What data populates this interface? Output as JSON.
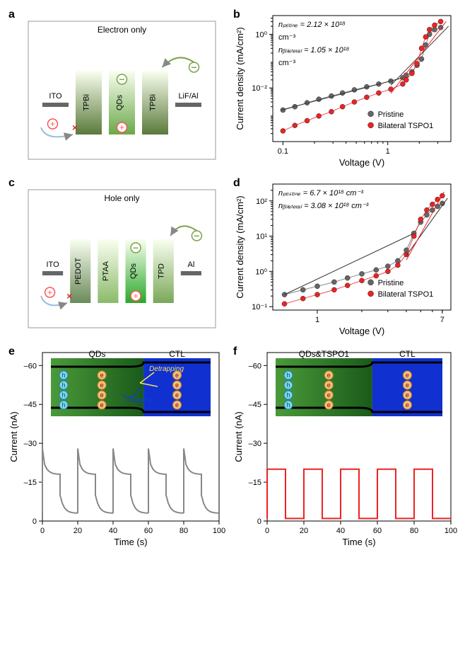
{
  "panels": {
    "a": {
      "label": "a",
      "title": "Electron only",
      "blocks": [
        "ITO",
        "TPBi",
        "QDs",
        "TPBi",
        "LiF/Al"
      ],
      "block_colors": [
        "#666666",
        "#5a7a3a",
        "#6aa84a",
        "#5a7a3a",
        "#666666"
      ],
      "arrow_positive_color": "#ff5555",
      "arrow_negative_color": "#7aa34a",
      "arrow_cross_color": "#9BBEDD",
      "cross_symbol": "×"
    },
    "b": {
      "label": "b",
      "xlabel": "Voltage (V)",
      "ylabel": "Current density (mA/cm²)",
      "xlim": [
        0.08,
        4
      ],
      "ylim": [
        0.0001,
        5
      ],
      "x_ticks": [
        0.1,
        1
      ],
      "y_ticks": [
        0.01,
        1
      ],
      "y_tick_labels": [
        "10⁻²",
        "10⁰"
      ],
      "series": [
        {
          "name": "Pristine",
          "color": "#666666",
          "marker": "circle",
          "data": [
            [
              0.1,
              0.0015
            ],
            [
              0.13,
              0.002
            ],
            [
              0.17,
              0.0028
            ],
            [
              0.22,
              0.0038
            ],
            [
              0.29,
              0.005
            ],
            [
              0.37,
              0.0065
            ],
            [
              0.48,
              0.0085
            ],
            [
              0.63,
              0.011
            ],
            [
              0.82,
              0.014
            ],
            [
              1.07,
              0.018
            ],
            [
              1.39,
              0.024
            ],
            [
              1.5,
              0.03
            ],
            [
              1.7,
              0.04
            ],
            [
              1.9,
              0.07
            ],
            [
              2.1,
              0.12
            ],
            [
              2.3,
              0.4
            ],
            [
              2.5,
              1.0
            ],
            [
              2.8,
              1.5
            ],
            [
              3.2,
              1.8
            ]
          ]
        },
        {
          "name": "Bilateral TSPO1",
          "color": "#ee2222",
          "marker": "circle",
          "data": [
            [
              0.1,
              0.00025
            ],
            [
              0.13,
              0.0004
            ],
            [
              0.17,
              0.0006
            ],
            [
              0.22,
              0.0009
            ],
            [
              0.29,
              0.0013
            ],
            [
              0.37,
              0.002
            ],
            [
              0.48,
              0.003
            ],
            [
              0.63,
              0.0045
            ],
            [
              0.82,
              0.0065
            ],
            [
              1.07,
              0.009
            ],
            [
              1.39,
              0.014
            ],
            [
              1.5,
              0.02
            ],
            [
              1.7,
              0.035
            ],
            [
              1.9,
              0.08
            ],
            [
              2.1,
              0.3
            ],
            [
              2.3,
              0.8
            ],
            [
              2.5,
              1.5
            ],
            [
              2.8,
              2.2
            ],
            [
              3.2,
              3.0
            ]
          ]
        }
      ],
      "annot1": "nₚᵣᵢₜᵢₙₑ = 2.12 × 10¹⁸",
      "annot1b": "cm⁻³",
      "annot2": "nᵦᵢₗₐₜₑᵣₐₗ = 1.05 × 10¹⁸",
      "annot2b": "cm⁻³",
      "fit_color_a": "#333333",
      "fit_color_b": "#ee2222"
    },
    "c": {
      "label": "c",
      "title": "Hole only",
      "blocks": [
        "ITO",
        "PEDOT",
        "PTAA",
        "QDs",
        "TPD",
        "Al"
      ],
      "block_colors": [
        "#666666",
        "#6a8a5a",
        "#8aba6a",
        "#2aa82a",
        "#7aa75a",
        "#666666"
      ],
      "arrow_positive_color": "#ff5555",
      "arrow_negative_color": "#7aa34a",
      "arrow_cross_color": "#9BBEDD",
      "cross_symbol": "×"
    },
    "d": {
      "label": "d",
      "xlabel": "Voltage (V)",
      "ylabel": "Current density (mA/cm²)",
      "xlim": [
        0.5,
        8
      ],
      "ylim": [
        0.08,
        300
      ],
      "x_ticks": [
        1,
        7
      ],
      "y_ticks": [
        0.1,
        1,
        10,
        100
      ],
      "y_tick_labels": [
        "10⁻¹",
        "10⁰",
        "10¹",
        "10²"
      ],
      "series": [
        {
          "name": "Pristine",
          "color": "#666666",
          "marker": "circle",
          "data": [
            [
              0.6,
              0.22
            ],
            [
              0.8,
              0.3
            ],
            [
              1.0,
              0.38
            ],
            [
              1.3,
              0.5
            ],
            [
              1.6,
              0.65
            ],
            [
              2.0,
              0.85
            ],
            [
              2.5,
              1.1
            ],
            [
              3.0,
              1.4
            ],
            [
              3.5,
              2.0
            ],
            [
              4.0,
              4.0
            ],
            [
              4.5,
              12
            ],
            [
              5.0,
              25
            ],
            [
              5.5,
              40
            ],
            [
              6.0,
              55
            ],
            [
              6.5,
              70
            ],
            [
              7.0,
              85
            ]
          ]
        },
        {
          "name": "Bilateral TSPO1",
          "color": "#ee2222",
          "marker": "circle",
          "data": [
            [
              0.6,
              0.12
            ],
            [
              0.8,
              0.17
            ],
            [
              1.0,
              0.22
            ],
            [
              1.3,
              0.3
            ],
            [
              1.6,
              0.4
            ],
            [
              2.0,
              0.55
            ],
            [
              2.5,
              0.75
            ],
            [
              3.0,
              1.0
            ],
            [
              3.5,
              1.5
            ],
            [
              4.0,
              3.0
            ],
            [
              4.5,
              10
            ],
            [
              5.0,
              30
            ],
            [
              5.5,
              55
            ],
            [
              6.0,
              80
            ],
            [
              6.5,
              110
            ],
            [
              7.0,
              140
            ]
          ]
        }
      ],
      "annot1": "nₚᵣᵢₛₜᵢₙₑ = 6.7 × 10¹⁸ cm⁻³",
      "annot2": "nᵦᵢₗₐₜₑᵣₐₗ = 3.08 × 10¹⁸ cm⁻³",
      "fit_color_a": "#333333",
      "fit_color_b": "#ee2222"
    },
    "e": {
      "label": "e",
      "xlabel": "Time (s)",
      "ylabel": "Current (nA)",
      "xlim": [
        0,
        100
      ],
      "ylim": [
        0,
        -65
      ],
      "x_ticks": [
        0,
        20,
        40,
        60,
        80,
        100
      ],
      "y_ticks": [
        0,
        -15,
        -30,
        -45,
        -60
      ],
      "series": {
        "color": "#888888",
        "period": 20,
        "on_high": -25,
        "on_decay_to": -18,
        "spike": -28,
        "off_high": -10,
        "off_decay_to": -3
      },
      "inset": {
        "qds_label": "QDs",
        "ctl_label": "CTL",
        "trapping_label": "Trapping",
        "detrapping_label": "Detrapping",
        "qds_color_a": "#4a9a3a",
        "qds_color_b": "#1a5a1a",
        "ctl_color": "#1030d0",
        "h_color": "#7ad6f5",
        "e_color": "#f5c070"
      }
    },
    "f": {
      "label": "f",
      "xlabel": "Time (s)",
      "ylabel": "Current (nA)",
      "xlim": [
        0,
        100
      ],
      "ylim": [
        0,
        -65
      ],
      "x_ticks": [
        0,
        20,
        40,
        60,
        80,
        100
      ],
      "y_ticks": [
        0,
        -15,
        -30,
        -45,
        -60
      ],
      "series": {
        "color": "#ee2222",
        "period": 20,
        "on_val": -20,
        "off_val": -1
      },
      "inset": {
        "qds_label": "QDs&TSPO1",
        "ctl_label": "CTL",
        "qds_color_a": "#4a9a3a",
        "qds_color_b": "#1a5a1a",
        "ctl_color": "#1030d0",
        "h_color": "#7ad6f5",
        "e_color": "#f5c070"
      }
    }
  },
  "colors": {
    "background": "#ffffff",
    "axis": "#000000"
  }
}
